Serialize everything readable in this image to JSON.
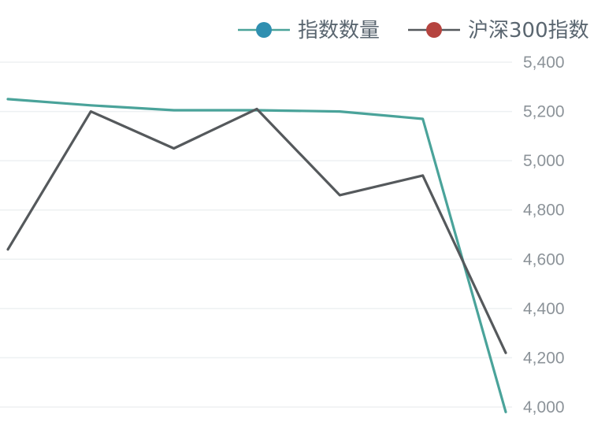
{
  "chart_data": {
    "type": "line",
    "title": "",
    "xlabel": "",
    "ylabel": "",
    "ylim": [
      4000,
      5400
    ],
    "yticks": [
      "5,400",
      "5,200",
      "5,000",
      "4,800",
      "4,600",
      "4,400",
      "4,200",
      "4,000"
    ],
    "ytick_values": [
      5400,
      5200,
      5000,
      4800,
      4600,
      4400,
      4200,
      4000
    ],
    "y_axis_side": "right",
    "grid": true,
    "legend_position": "top-right",
    "x": [
      0,
      1,
      2,
      3,
      4,
      5,
      6
    ],
    "series": [
      {
        "name": "指数数量",
        "color": "#2f8fb0",
        "line_color": "#4aa39a",
        "values": [
          5250,
          5225,
          5205,
          5205,
          5200,
          5170,
          3980
        ]
      },
      {
        "name": "沪深300指数",
        "color": "#b5433f",
        "line_color": "#55595c",
        "values": [
          4640,
          5200,
          5050,
          5210,
          4860,
          4940,
          4220
        ]
      }
    ]
  }
}
